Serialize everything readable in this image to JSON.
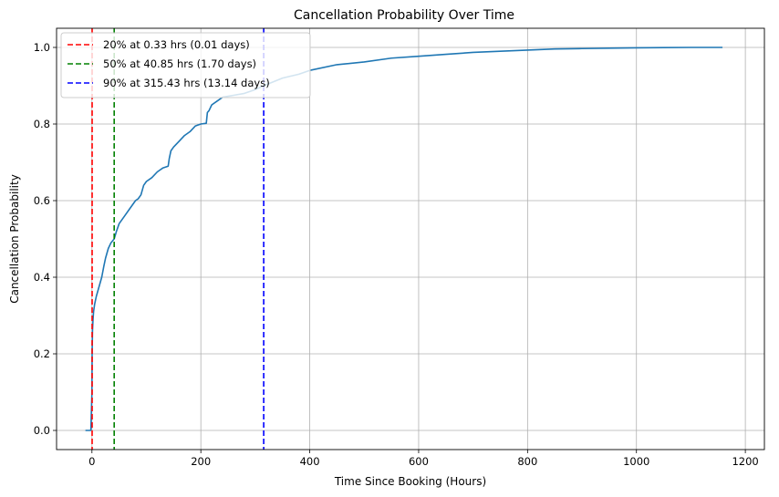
{
  "chart_data": {
    "type": "line",
    "title": "Cancellation Probability Over Time",
    "xlabel": "Time Since Booking (Hours)",
    "ylabel": "Cancellation Probability",
    "xlim": [
      -65,
      1235
    ],
    "ylim": [
      -0.05,
      1.05
    ],
    "xticks": [
      0,
      200,
      400,
      600,
      800,
      1000,
      1200
    ],
    "yticks": [
      0.0,
      0.2,
      0.4,
      0.6,
      0.8,
      1.0
    ],
    "grid": true,
    "legend_position": "top-left",
    "series": [
      {
        "color": "#1f77b4",
        "x": [
          -12,
          -2,
          0,
          0.33,
          1,
          2,
          3,
          5,
          8,
          12,
          18,
          22,
          25,
          30,
          35,
          40.85,
          45,
          50,
          60,
          70,
          80,
          85,
          90,
          95,
          100,
          110,
          120,
          125,
          130,
          140,
          142,
          145,
          150,
          160,
          170,
          175,
          180,
          190,
          200,
          210,
          212,
          215,
          220,
          230,
          240,
          260,
          280,
          300,
          315.43,
          350,
          380,
          400,
          450,
          500,
          550,
          600,
          650,
          700,
          750,
          800,
          850,
          900,
          950,
          1000,
          1050,
          1100,
          1158
        ],
        "y": [
          0.0,
          0.0,
          0.1,
          0.2,
          0.26,
          0.29,
          0.31,
          0.33,
          0.35,
          0.37,
          0.4,
          0.43,
          0.45,
          0.475,
          0.49,
          0.5,
          0.52,
          0.54,
          0.56,
          0.58,
          0.6,
          0.605,
          0.615,
          0.64,
          0.65,
          0.66,
          0.675,
          0.68,
          0.685,
          0.69,
          0.71,
          0.73,
          0.74,
          0.755,
          0.77,
          0.775,
          0.78,
          0.795,
          0.8,
          0.802,
          0.83,
          0.835,
          0.85,
          0.86,
          0.87,
          0.875,
          0.88,
          0.89,
          0.9,
          0.92,
          0.93,
          0.94,
          0.955,
          0.962,
          0.972,
          0.977,
          0.982,
          0.987,
          0.99,
          0.993,
          0.996,
          0.997,
          0.998,
          0.999,
          0.9995,
          1.0,
          1.0
        ]
      }
    ],
    "markers": [
      {
        "label": "20% at 0.33 hrs (0.01 days)",
        "x": 0.33,
        "color": "#ff0000"
      },
      {
        "label": "50% at 40.85 hrs (1.70 days)",
        "x": 40.85,
        "color": "#008000"
      },
      {
        "label": "90% at 315.43 hrs (13.14 days)",
        "x": 315.43,
        "color": "#0000ff"
      }
    ]
  }
}
